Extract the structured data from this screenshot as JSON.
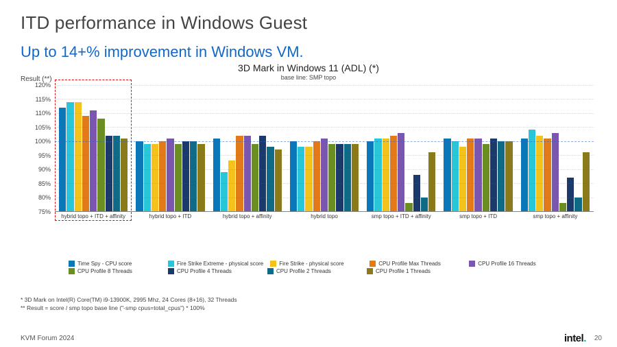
{
  "slide": {
    "title": "ITD performance in Windows Guest",
    "title_color": "#444444",
    "subtitle": "Up to 14+% improvement in Windows VM.",
    "subtitle_color": "#1268c7"
  },
  "chart": {
    "type": "bar",
    "title": "3D Mark in Windows 11 (ADL) (*)",
    "subtitle": "base line: SMP topo",
    "y_label": "Result (**)",
    "ylim": [
      75,
      120
    ],
    "ytick_step": 5,
    "yticks": [
      75,
      80,
      85,
      90,
      95,
      100,
      105,
      110,
      115,
      120
    ],
    "ytick_suffix": "%",
    "reference_line": 100,
    "background_color": "#ffffff",
    "grid_color": "#9db6d6",
    "series": [
      {
        "name": "Time Spy - CPU score",
        "color": "#0a78b8"
      },
      {
        "name": "Fire Strike Extreme - physical score",
        "color": "#28c6d8"
      },
      {
        "name": "Fire Strike - physical score",
        "color": "#f4c21a"
      },
      {
        "name": "CPU Profile Max Threads",
        "color": "#e27a1a"
      },
      {
        "name": "CPU Profile 16 Threads",
        "color": "#7b56b0"
      },
      {
        "name": "CPU Profile 8 Threads",
        "color": "#6b8e23"
      },
      {
        "name": "CPU Profile 4 Threads",
        "color": "#1b3a6b"
      },
      {
        "name": "CPU Profile 2 Threads",
        "color": "#0f6a85"
      },
      {
        "name": "CPU Profile 1 Threads",
        "color": "#8a7a1a"
      }
    ],
    "categories": [
      "hybrid topo + ITD + affinity",
      "hybrid topo + ITD",
      "hybrid topo + affinity",
      "hybrid topo",
      "smp topo + ITD + affinity",
      "smp topo + ITD",
      "smp topo + affinity"
    ],
    "highlight_category_index": 0,
    "values": [
      [
        112,
        114,
        114,
        109,
        111,
        108,
        102,
        102,
        101
      ],
      [
        100,
        99,
        99,
        100,
        101,
        99,
        100,
        100,
        99
      ],
      [
        101,
        89,
        93,
        102,
        102,
        99,
        102,
        98,
        97
      ],
      [
        100,
        98,
        98,
        100,
        101,
        99,
        99,
        99,
        99
      ],
      [
        100,
        101,
        101,
        102,
        103,
        78,
        88,
        80,
        96
      ],
      [
        101,
        100,
        98,
        101,
        101,
        99,
        101,
        100,
        100
      ],
      [
        101,
        104,
        102,
        101,
        103,
        78,
        87,
        80,
        96
      ]
    ]
  },
  "footnotes": [
    "* 3D Mark on Intel(R) Core(TM) i9-13900K, 2995 Mhz, 24 Cores (8+16), 32 Threads",
    "** Result = score / smp topo base line (\"-smp cpus=total_cpus\") * 100%"
  ],
  "footer": {
    "event": "KVM Forum 2024",
    "brand": "intel",
    "page": "20"
  }
}
